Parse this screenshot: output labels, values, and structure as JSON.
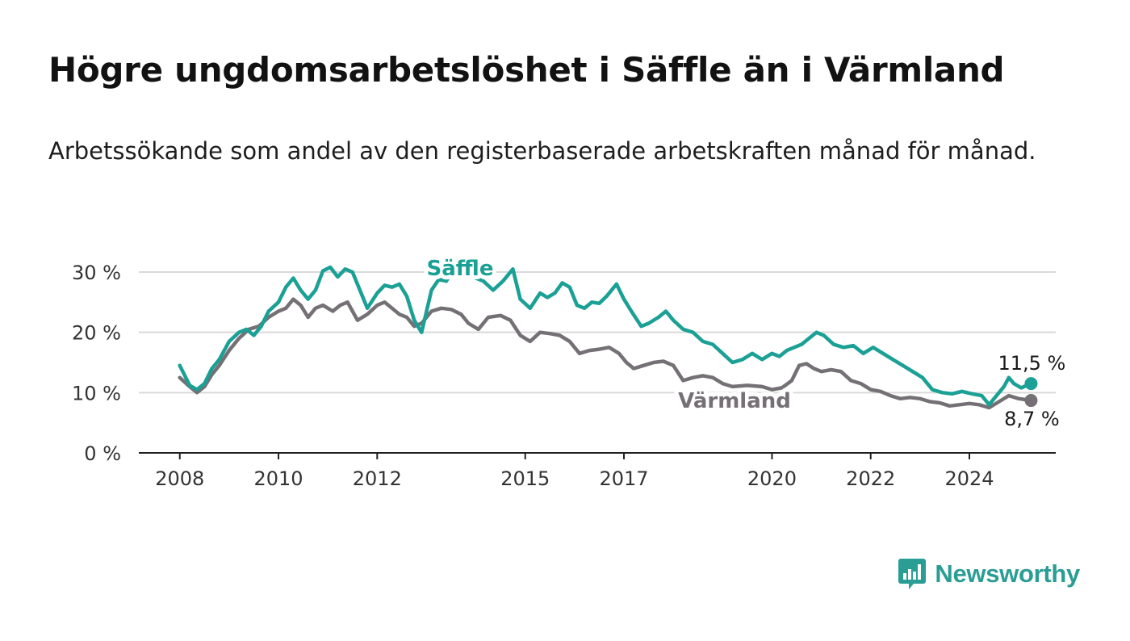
{
  "header": {
    "title": "Högre ungdomsarbetslöshet i Säffle än i Värmland",
    "subtitle": "Arbetssökande som andel av den registerbaserade arbetskraften månad för månad."
  },
  "brand": {
    "name": "Newsworthy",
    "color": "#2a9d94"
  },
  "chart_data": {
    "type": "line",
    "title": "Högre ungdomsarbetslöshet i Säffle än i Värmland",
    "subtitle": "Arbetssökande som andel av den registerbaserade arbetskraften månad för månad.",
    "ylim": [
      0,
      30
    ],
    "yticks": [
      0,
      10,
      20,
      30
    ],
    "ytick_labels": [
      "0 %",
      "10 %",
      "20 %",
      "30 %"
    ],
    "xlim": [
      2007.17,
      2025.75
    ],
    "xticks": [
      2008,
      2010,
      2012,
      2015,
      2017,
      2020,
      2022,
      2024
    ],
    "xtick_labels": [
      "2008",
      "2010",
      "2012",
      "2015",
      "2017",
      "2020",
      "2022",
      "2024"
    ],
    "grid": true,
    "series": [
      {
        "name": "Säffle",
        "color": "#1aa095",
        "end_label": "11,5 %",
        "points": [
          [
            2008.0,
            14.5
          ],
          [
            2008.2,
            11.2
          ],
          [
            2008.35,
            10.5
          ],
          [
            2008.5,
            11.5
          ],
          [
            2008.65,
            14.0
          ],
          [
            2008.8,
            15.5
          ],
          [
            2009.0,
            18.5
          ],
          [
            2009.2,
            20.0
          ],
          [
            2009.35,
            20.5
          ],
          [
            2009.5,
            19.5
          ],
          [
            2009.65,
            21.0
          ],
          [
            2009.8,
            23.5
          ],
          [
            2010.0,
            25.0
          ],
          [
            2010.15,
            27.5
          ],
          [
            2010.3,
            29.0
          ],
          [
            2010.45,
            27.0
          ],
          [
            2010.6,
            25.5
          ],
          [
            2010.75,
            27.0
          ],
          [
            2010.9,
            30.2
          ],
          [
            2011.05,
            30.8
          ],
          [
            2011.2,
            29.2
          ],
          [
            2011.35,
            30.5
          ],
          [
            2011.5,
            30.0
          ],
          [
            2011.65,
            27.0
          ],
          [
            2011.8,
            24.0
          ],
          [
            2012.0,
            26.5
          ],
          [
            2012.15,
            27.8
          ],
          [
            2012.3,
            27.5
          ],
          [
            2012.45,
            28.0
          ],
          [
            2012.6,
            26.0
          ],
          [
            2012.75,
            22.0
          ],
          [
            2012.9,
            20.0
          ],
          [
            2013.1,
            27.0
          ],
          [
            2013.25,
            28.8
          ],
          [
            2013.4,
            28.5
          ],
          [
            2013.55,
            30.5
          ],
          [
            2014.15,
            28.5
          ],
          [
            2014.35,
            27.0
          ],
          [
            2014.55,
            28.5
          ],
          [
            2014.75,
            30.5
          ],
          [
            2014.9,
            25.5
          ],
          [
            2015.1,
            24.0
          ],
          [
            2015.3,
            26.5
          ],
          [
            2015.45,
            25.8
          ],
          [
            2015.6,
            26.5
          ],
          [
            2015.75,
            28.2
          ],
          [
            2015.9,
            27.5
          ],
          [
            2016.05,
            24.5
          ],
          [
            2016.2,
            24.0
          ],
          [
            2016.35,
            25.0
          ],
          [
            2016.5,
            24.8
          ],
          [
            2016.65,
            26.0
          ],
          [
            2016.85,
            28.0
          ],
          [
            2017.0,
            25.5
          ],
          [
            2017.15,
            23.5
          ],
          [
            2017.35,
            21.0
          ],
          [
            2017.5,
            21.5
          ],
          [
            2017.7,
            22.5
          ],
          [
            2017.85,
            23.5
          ],
          [
            2018.0,
            22.0
          ],
          [
            2018.2,
            20.5
          ],
          [
            2018.4,
            20.0
          ],
          [
            2018.6,
            18.5
          ],
          [
            2018.8,
            18.0
          ],
          [
            2019.0,
            16.5
          ],
          [
            2019.2,
            15.0
          ],
          [
            2019.4,
            15.5
          ],
          [
            2019.6,
            16.5
          ],
          [
            2019.8,
            15.5
          ],
          [
            2020.0,
            16.5
          ],
          [
            2020.15,
            16.0
          ],
          [
            2020.3,
            17.0
          ],
          [
            2020.45,
            17.5
          ],
          [
            2020.6,
            18.0
          ],
          [
            2020.75,
            19.0
          ],
          [
            2020.9,
            20.0
          ],
          [
            2021.05,
            19.5
          ],
          [
            2021.25,
            18.0
          ],
          [
            2021.45,
            17.5
          ],
          [
            2021.65,
            17.8
          ],
          [
            2021.85,
            16.5
          ],
          [
            2022.05,
            17.5
          ],
          [
            2022.25,
            16.5
          ],
          [
            2022.45,
            15.5
          ],
          [
            2022.65,
            14.5
          ],
          [
            2022.85,
            13.5
          ],
          [
            2023.05,
            12.5
          ],
          [
            2023.25,
            10.5
          ],
          [
            2023.45,
            10.0
          ],
          [
            2023.65,
            9.8
          ],
          [
            2023.85,
            10.2
          ],
          [
            2024.05,
            9.8
          ],
          [
            2024.25,
            9.5
          ],
          [
            2024.4,
            8.0
          ],
          [
            2024.55,
            9.5
          ],
          [
            2024.7,
            11.0
          ],
          [
            2024.8,
            12.5
          ],
          [
            2024.9,
            11.5
          ],
          [
            2025.05,
            10.8
          ],
          [
            2025.25,
            11.5
          ]
        ]
      },
      {
        "name": "Värmland",
        "color": "#757075",
        "end_label": "8,7 %",
        "points": [
          [
            2008.0,
            12.5
          ],
          [
            2008.2,
            11.0
          ],
          [
            2008.35,
            10.0
          ],
          [
            2008.5,
            11.0
          ],
          [
            2008.65,
            13.0
          ],
          [
            2008.8,
            14.5
          ],
          [
            2009.0,
            17.0
          ],
          [
            2009.2,
            19.0
          ],
          [
            2009.4,
            20.5
          ],
          [
            2009.6,
            21.0
          ],
          [
            2009.8,
            22.5
          ],
          [
            2010.0,
            23.5
          ],
          [
            2010.15,
            24.0
          ],
          [
            2010.3,
            25.5
          ],
          [
            2010.45,
            24.5
          ],
          [
            2010.6,
            22.5
          ],
          [
            2010.75,
            24.0
          ],
          [
            2010.9,
            24.5
          ],
          [
            2011.1,
            23.5
          ],
          [
            2011.25,
            24.5
          ],
          [
            2011.4,
            25.0
          ],
          [
            2011.6,
            22.0
          ],
          [
            2011.8,
            23.0
          ],
          [
            2012.0,
            24.5
          ],
          [
            2012.15,
            25.0
          ],
          [
            2012.3,
            24.0
          ],
          [
            2012.45,
            23.0
          ],
          [
            2012.6,
            22.5
          ],
          [
            2012.75,
            21.0
          ],
          [
            2012.9,
            21.5
          ],
          [
            2013.1,
            23.5
          ],
          [
            2013.3,
            24.0
          ],
          [
            2013.5,
            23.8
          ],
          [
            2013.7,
            23.0
          ],
          [
            2013.85,
            21.5
          ],
          [
            2014.05,
            20.5
          ],
          [
            2014.25,
            22.5
          ],
          [
            2014.5,
            22.8
          ],
          [
            2014.7,
            22.0
          ],
          [
            2014.9,
            19.5
          ],
          [
            2015.1,
            18.5
          ],
          [
            2015.3,
            20.0
          ],
          [
            2015.5,
            19.8
          ],
          [
            2015.7,
            19.5
          ],
          [
            2015.9,
            18.5
          ],
          [
            2016.1,
            16.5
          ],
          [
            2016.3,
            17.0
          ],
          [
            2016.5,
            17.2
          ],
          [
            2016.7,
            17.5
          ],
          [
            2016.9,
            16.5
          ],
          [
            2017.05,
            15.0
          ],
          [
            2017.2,
            14.0
          ],
          [
            2017.4,
            14.5
          ],
          [
            2017.6,
            15.0
          ],
          [
            2017.8,
            15.2
          ],
          [
            2018.0,
            14.5
          ],
          [
            2018.2,
            12.0
          ],
          [
            2018.4,
            12.5
          ],
          [
            2018.6,
            12.8
          ],
          [
            2018.8,
            12.5
          ],
          [
            2019.0,
            11.5
          ],
          [
            2019.2,
            11.0
          ],
          [
            2019.5,
            11.2
          ],
          [
            2019.8,
            11.0
          ],
          [
            2020.0,
            10.5
          ],
          [
            2020.2,
            10.8
          ],
          [
            2020.4,
            12.0
          ],
          [
            2020.55,
            14.5
          ],
          [
            2020.7,
            14.8
          ],
          [
            2020.85,
            14.0
          ],
          [
            2021.0,
            13.5
          ],
          [
            2021.2,
            13.8
          ],
          [
            2021.4,
            13.5
          ],
          [
            2021.6,
            12.0
          ],
          [
            2021.8,
            11.5
          ],
          [
            2022.0,
            10.5
          ],
          [
            2022.2,
            10.2
          ],
          [
            2022.4,
            9.5
          ],
          [
            2022.6,
            9.0
          ],
          [
            2022.8,
            9.2
          ],
          [
            2023.0,
            9.0
          ],
          [
            2023.2,
            8.5
          ],
          [
            2023.4,
            8.3
          ],
          [
            2023.6,
            7.8
          ],
          [
            2023.8,
            8.0
          ],
          [
            2024.0,
            8.2
          ],
          [
            2024.2,
            8.0
          ],
          [
            2024.4,
            7.5
          ],
          [
            2024.6,
            8.5
          ],
          [
            2024.8,
            9.5
          ],
          [
            2025.0,
            9.0
          ],
          [
            2025.25,
            8.7
          ]
        ]
      }
    ]
  }
}
